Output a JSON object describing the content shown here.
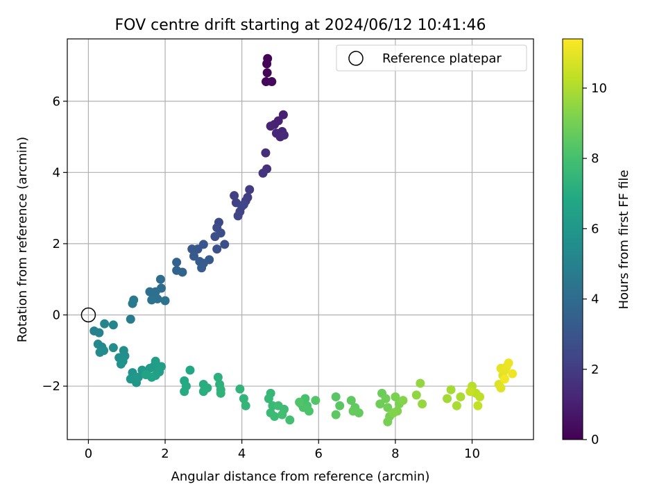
{
  "chart_data": {
    "type": "scatter",
    "title": "FOV centre drift starting at 2024/06/12 10:41:46",
    "xlabel": "Angular distance from reference (arcmin)",
    "ylabel": "Rotation from reference (arcmin)",
    "xlim": [
      -0.55,
      11.6
    ],
    "ylim": [
      -3.5,
      7.75
    ],
    "xticks": [
      0,
      2,
      4,
      6,
      8,
      10
    ],
    "yticks": [
      -2,
      0,
      2,
      4,
      6
    ],
    "grid": true,
    "legend": {
      "placement": "top-right",
      "entries": [
        "Reference platepar"
      ]
    },
    "reference_point": {
      "x": 0,
      "y": 0
    },
    "colorbar": {
      "label": "Hours from first FF file",
      "range": [
        0,
        11.4
      ],
      "ticks": [
        0,
        2,
        4,
        6,
        8,
        10
      ],
      "colormap": "viridis",
      "colors": [
        "#440154",
        "#482475",
        "#414487",
        "#355f8d",
        "#2a788e",
        "#21918c",
        "#22a884",
        "#44bf70",
        "#7ad151",
        "#bddf26",
        "#fde725"
      ]
    },
    "points": [
      [
        4.67,
        7.2,
        0.05
      ],
      [
        4.65,
        7.05,
        0.1
      ],
      [
        4.66,
        6.8,
        0.15
      ],
      [
        4.63,
        6.55,
        0.2
      ],
      [
        4.78,
        6.55,
        0.25
      ],
      [
        5.08,
        5.62,
        1.0
      ],
      [
        4.95,
        5.45,
        1.05
      ],
      [
        4.85,
        5.35,
        1.1
      ],
      [
        4.75,
        5.3,
        1.15
      ],
      [
        5.05,
        5.15,
        1.2
      ],
      [
        4.9,
        5.1,
        1.25
      ],
      [
        5.0,
        5.0,
        1.3
      ],
      [
        5.1,
        5.05,
        1.35
      ],
      [
        4.62,
        4.55,
        1.5
      ],
      [
        4.65,
        4.1,
        1.6
      ],
      [
        4.55,
        3.98,
        1.7
      ],
      [
        4.2,
        3.52,
        2.0
      ],
      [
        4.15,
        3.3,
        2.05
      ],
      [
        4.1,
        3.2,
        2.1
      ],
      [
        3.8,
        3.35,
        2.15
      ],
      [
        3.85,
        3.15,
        2.2
      ],
      [
        4.0,
        3.05,
        2.25
      ],
      [
        3.95,
        2.9,
        2.3
      ],
      [
        3.9,
        2.78,
        2.35
      ],
      [
        4.05,
        3.1,
        2.4
      ],
      [
        3.4,
        2.6,
        2.55
      ],
      [
        3.35,
        2.45,
        2.6
      ],
      [
        3.45,
        2.3,
        2.65
      ],
      [
        3.3,
        2.2,
        2.7
      ],
      [
        3.55,
        1.98,
        2.75
      ],
      [
        3.35,
        1.85,
        2.8
      ],
      [
        3.0,
        1.98,
        3.0
      ],
      [
        2.85,
        1.85,
        3.05
      ],
      [
        2.7,
        1.85,
        3.1
      ],
      [
        2.75,
        1.65,
        3.15
      ],
      [
        3.15,
        1.55,
        3.2
      ],
      [
        2.9,
        1.5,
        3.25
      ],
      [
        3.0,
        1.45,
        3.3
      ],
      [
        2.95,
        1.32,
        3.35
      ],
      [
        2.3,
        1.48,
        3.55
      ],
      [
        2.3,
        1.25,
        3.6
      ],
      [
        2.45,
        1.2,
        3.65
      ],
      [
        1.88,
        1.0,
        4.0
      ],
      [
        1.9,
        0.75,
        4.05
      ],
      [
        1.75,
        0.65,
        4.1
      ],
      [
        1.6,
        0.65,
        4.15
      ],
      [
        1.7,
        0.55,
        4.2
      ],
      [
        1.8,
        0.45,
        4.25
      ],
      [
        1.65,
        0.42,
        4.3
      ],
      [
        2.0,
        0.4,
        4.35
      ],
      [
        1.18,
        0.42,
        4.6
      ],
      [
        1.15,
        0.32,
        4.65
      ],
      [
        1.1,
        -0.12,
        4.75
      ],
      [
        0.15,
        -0.45,
        5.0
      ],
      [
        0.28,
        -0.5,
        5.05
      ],
      [
        0.42,
        -0.25,
        5.1
      ],
      [
        0.65,
        -0.28,
        5.15
      ],
      [
        0.25,
        -0.82,
        5.3
      ],
      [
        0.35,
        -0.9,
        5.35
      ],
      [
        0.3,
        -1.05,
        5.4
      ],
      [
        0.4,
        -1.0,
        5.45
      ],
      [
        0.65,
        -0.92,
        5.5
      ],
      [
        0.92,
        -1.0,
        5.55
      ],
      [
        0.95,
        -1.15,
        5.6
      ],
      [
        0.8,
        -1.2,
        5.65
      ],
      [
        0.9,
        -1.3,
        5.7
      ],
      [
        0.85,
        -1.38,
        5.75
      ],
      [
        1.15,
        -1.62,
        5.85
      ],
      [
        1.2,
        -1.75,
        5.9
      ],
      [
        1.1,
        -1.8,
        5.95
      ],
      [
        1.25,
        -1.9,
        6.0
      ],
      [
        1.3,
        -1.75,
        6.05
      ],
      [
        1.4,
        -1.55,
        6.1
      ],
      [
        1.5,
        -1.6,
        6.15
      ],
      [
        1.6,
        -1.5,
        6.2
      ],
      [
        1.7,
        -1.45,
        6.25
      ],
      [
        1.75,
        -1.3,
        6.3
      ],
      [
        1.8,
        -1.55,
        6.35
      ],
      [
        1.9,
        -1.45,
        6.4
      ],
      [
        1.85,
        -1.6,
        6.45
      ],
      [
        1.75,
        -1.7,
        6.5
      ],
      [
        1.65,
        -1.75,
        6.55
      ],
      [
        1.5,
        -1.68,
        6.6
      ],
      [
        2.65,
        -1.55,
        6.8
      ],
      [
        2.5,
        -1.85,
        6.85
      ],
      [
        2.55,
        -2.0,
        6.9
      ],
      [
        2.5,
        -2.15,
        6.95
      ],
      [
        3.0,
        -1.95,
        7.05
      ],
      [
        3.1,
        -2.05,
        7.1
      ],
      [
        3.0,
        -2.15,
        7.15
      ],
      [
        3.38,
        -1.75,
        7.2
      ],
      [
        3.42,
        -1.95,
        7.25
      ],
      [
        3.45,
        -2.1,
        7.3
      ],
      [
        3.45,
        -2.2,
        7.35
      ],
      [
        3.95,
        -2.08,
        7.4
      ],
      [
        4.05,
        -2.35,
        7.45
      ],
      [
        4.1,
        -2.55,
        7.5
      ],
      [
        4.75,
        -2.2,
        7.55
      ],
      [
        4.7,
        -2.35,
        7.6
      ],
      [
        4.8,
        -2.55,
        7.65
      ],
      [
        4.75,
        -2.75,
        7.7
      ],
      [
        4.85,
        -2.85,
        7.75
      ],
      [
        4.95,
        -2.55,
        7.8
      ],
      [
        5.1,
        -2.65,
        7.85
      ],
      [
        5.05,
        -2.8,
        7.9
      ],
      [
        5.25,
        -2.95,
        7.95
      ],
      [
        5.55,
        -2.5,
        8.0
      ],
      [
        5.65,
        -2.35,
        8.05
      ],
      [
        5.7,
        -2.55,
        8.1
      ],
      [
        5.75,
        -2.7,
        8.15
      ],
      [
        5.6,
        -2.6,
        8.2
      ],
      [
        5.5,
        -2.45,
        8.25
      ],
      [
        5.92,
        -2.4,
        8.3
      ],
      [
        6.45,
        -2.3,
        8.4
      ],
      [
        6.55,
        -2.55,
        8.45
      ],
      [
        6.45,
        -2.8,
        8.5
      ],
      [
        6.85,
        -2.4,
        8.55
      ],
      [
        6.95,
        -2.6,
        8.6
      ],
      [
        7.05,
        -2.75,
        8.65
      ],
      [
        6.9,
        -2.7,
        8.7
      ],
      [
        7.65,
        -2.2,
        8.8
      ],
      [
        7.6,
        -2.5,
        8.85
      ],
      [
        7.75,
        -2.35,
        8.9
      ],
      [
        7.8,
        -2.6,
        8.95
      ],
      [
        7.85,
        -2.85,
        9.0
      ],
      [
        7.8,
        -3.0,
        9.05
      ],
      [
        8.0,
        -2.3,
        9.1
      ],
      [
        8.1,
        -2.5,
        9.15
      ],
      [
        8.05,
        -2.7,
        9.2
      ],
      [
        7.95,
        -2.75,
        9.25
      ],
      [
        8.2,
        -2.4,
        9.3
      ],
      [
        8.55,
        -2.25,
        9.5
      ],
      [
        8.65,
        -1.92,
        9.55
      ],
      [
        8.7,
        -2.5,
        9.6
      ],
      [
        9.35,
        -2.35,
        9.8
      ],
      [
        9.45,
        -2.1,
        9.85
      ],
      [
        9.6,
        -2.55,
        9.9
      ],
      [
        9.7,
        -2.3,
        9.95
      ],
      [
        10.0,
        -2.0,
        10.2
      ],
      [
        10.1,
        -2.2,
        10.25
      ],
      [
        10.2,
        -2.3,
        10.3
      ],
      [
        10.15,
        -2.55,
        10.35
      ],
      [
        9.95,
        -2.15,
        10.4
      ],
      [
        10.7,
        -1.95,
        10.8
      ],
      [
        10.75,
        -2.05,
        10.85
      ],
      [
        10.8,
        -1.7,
        10.9
      ],
      [
        10.75,
        -1.5,
        10.95
      ],
      [
        10.85,
        -1.55,
        11.0
      ],
      [
        10.9,
        -1.45,
        11.05
      ],
      [
        10.95,
        -1.35,
        11.1
      ],
      [
        11.05,
        -1.65,
        11.15
      ],
      [
        10.85,
        -1.8,
        11.2
      ]
    ]
  }
}
